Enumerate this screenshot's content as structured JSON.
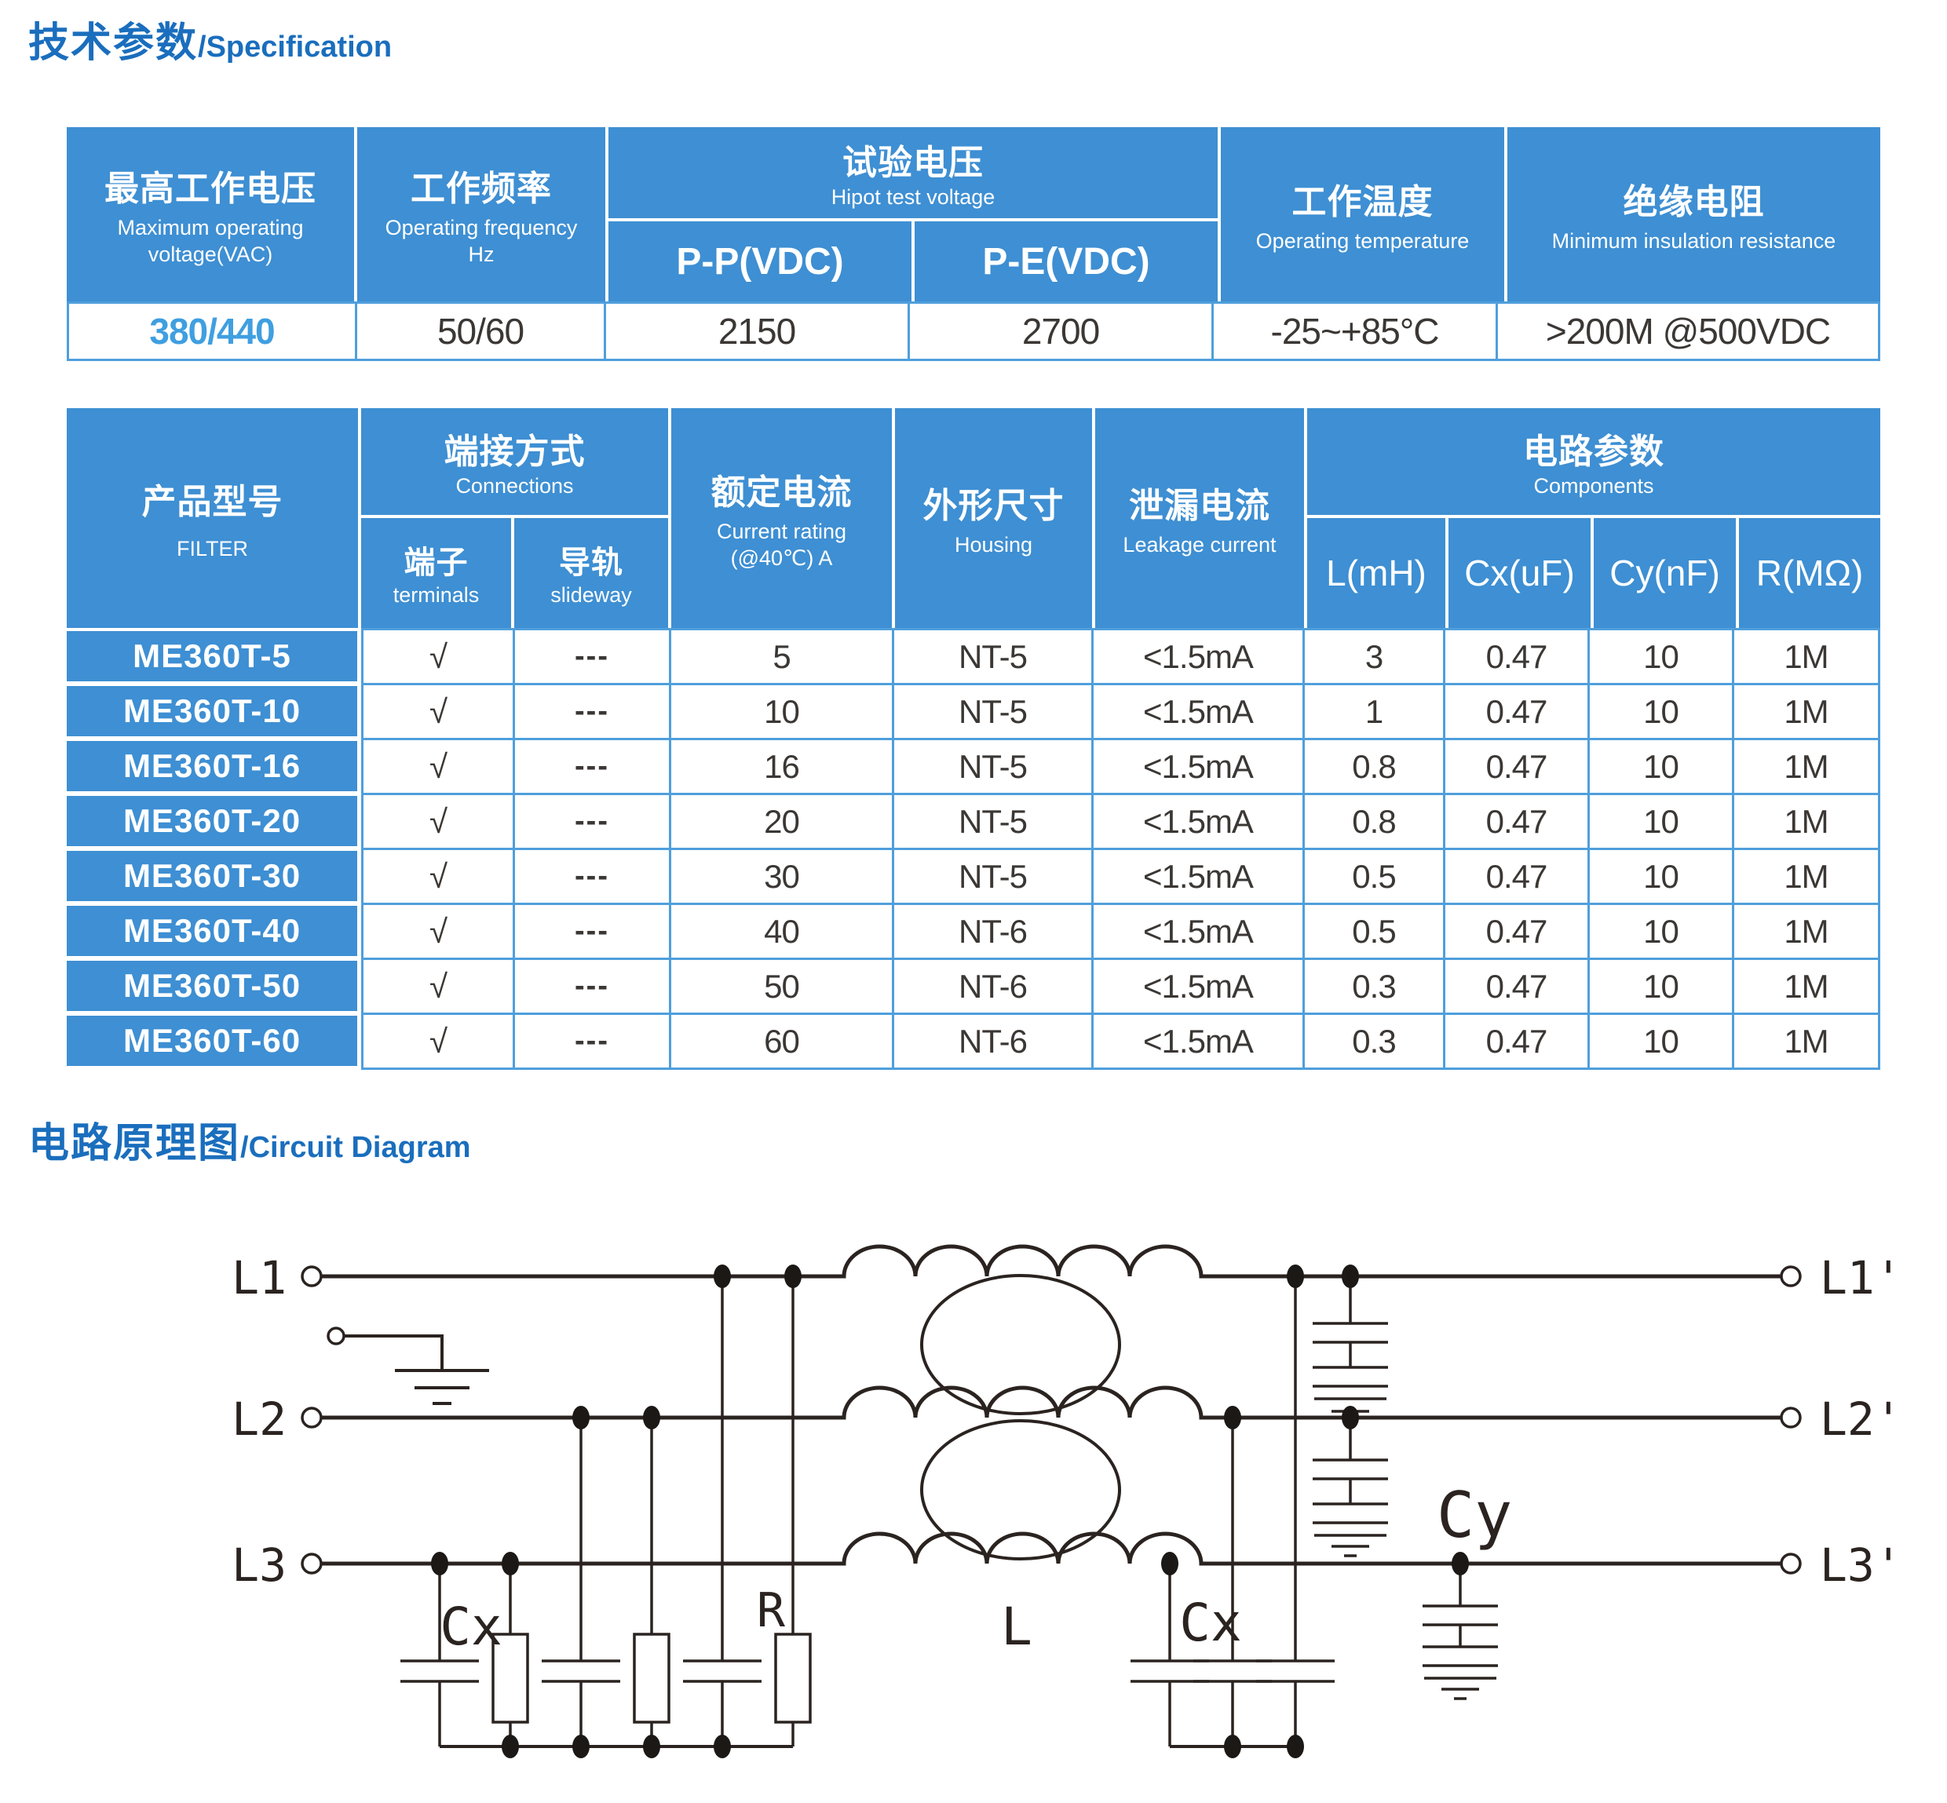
{
  "titles": {
    "spec_cn": "技术参数",
    "spec_en": "/Specification",
    "circuit_cn": "电路原理图",
    "circuit_en": "/Circuit Diagram"
  },
  "colors": {
    "header_blue": "#3e8fd3",
    "grid_blue": "#4f9fdc",
    "title_blue": "#1a6ebd",
    "accent_blue": "#3f9fe0",
    "ink": "#2a2320"
  },
  "spec_table": {
    "col_voltage_cn": "最高工作电压",
    "col_voltage_en": "Maximum operating voltage(VAC)",
    "col_freq_cn": "工作频率",
    "col_freq_en": "Operating frequency Hz",
    "col_hipot_cn": "试验电压",
    "col_hipot_en": "Hipot test voltage",
    "col_hipot_pp": "P-P(VDC)",
    "col_hipot_pe": "P-E(VDC)",
    "col_temp_cn": "工作温度",
    "col_temp_en": "Operating temperature",
    "col_insul_cn": "绝缘电阻",
    "col_insul_en": "Minimum insulation resistance",
    "row": {
      "voltage": "380/440",
      "freq": "50/60",
      "pp": "2150",
      "pe": "2700",
      "temp": "-25~+85°C",
      "insulation": ">200M @500VDC"
    }
  },
  "product_table": {
    "filter_cn": "产品型号",
    "filter_en": "FILTER",
    "connections_cn": "端接方式",
    "connections_en": "Connections",
    "terminals_cn": "端子",
    "terminals_en": "terminals",
    "slideway_cn": "导轨",
    "slideway_en": "slideway",
    "current_cn": "额定电流",
    "current_en": "Current rating (@40℃)  A",
    "housing_cn": "外形尺寸",
    "housing_en": "Housing",
    "leakage_cn": "泄漏电流",
    "leakage_en": "Leakage current",
    "components_cn": "电路参数",
    "components_en": "Components",
    "sub_l": "L(mH)",
    "sub_cx": "Cx(uF)",
    "sub_cy": "Cy(nF)",
    "sub_r": "R(MΩ)",
    "rows": [
      {
        "model": "ME360T-5",
        "values": [
          "√",
          "---",
          "5",
          "NT-5",
          "<1.5mA",
          "3",
          "0.47",
          "10",
          "1M"
        ]
      },
      {
        "model": "ME360T-10",
        "values": [
          "√",
          "---",
          "10",
          "NT-5",
          "<1.5mA",
          "1",
          "0.47",
          "10",
          "1M"
        ]
      },
      {
        "model": "ME360T-16",
        "values": [
          "√",
          "---",
          "16",
          "NT-5",
          "<1.5mA",
          "0.8",
          "0.47",
          "10",
          "1M"
        ]
      },
      {
        "model": "ME360T-20",
        "values": [
          "√",
          "---",
          "20",
          "NT-5",
          "<1.5mA",
          "0.8",
          "0.47",
          "10",
          "1M"
        ]
      },
      {
        "model": "ME360T-30",
        "values": [
          "√",
          "---",
          "30",
          "NT-5",
          "<1.5mA",
          "0.5",
          "0.47",
          "10",
          "1M"
        ]
      },
      {
        "model": "ME360T-40",
        "values": [
          "√",
          "---",
          "40",
          "NT-6",
          "<1.5mA",
          "0.5",
          "0.47",
          "10",
          "1M"
        ]
      },
      {
        "model": "ME360T-50",
        "values": [
          "√",
          "---",
          "50",
          "NT-6",
          "<1.5mA",
          "0.3",
          "0.47",
          "10",
          "1M"
        ]
      },
      {
        "model": "ME360T-60",
        "values": [
          "√",
          "---",
          "60",
          "NT-6",
          "<1.5mA",
          "0.3",
          "0.47",
          "10",
          "1M"
        ]
      }
    ]
  },
  "circuit": {
    "labels": {
      "l1": "L1",
      "l2": "L2",
      "l3": "L3",
      "l1p": "L1'",
      "l2p": "L2'",
      "l3p": "L3'",
      "cx_left": "Cx",
      "r": "R",
      "l": "L",
      "cx_right": "Cx",
      "cy": "Cy"
    }
  }
}
